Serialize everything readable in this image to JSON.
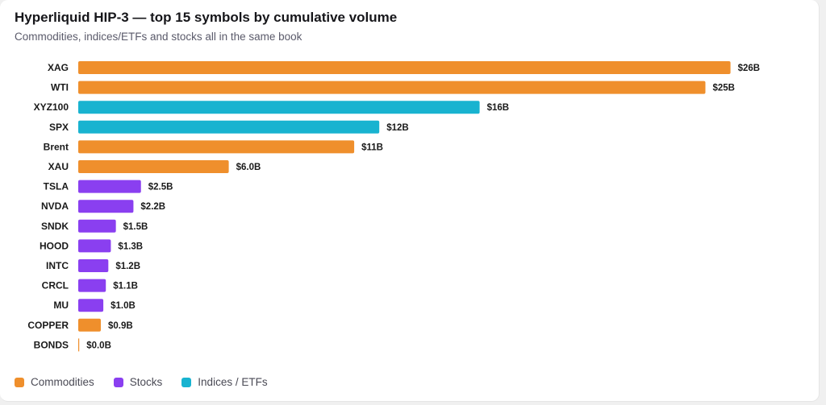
{
  "colors": {
    "Commodities": "#ef8f2c",
    "Stocks": "#8a3ff0",
    "Indices / ETFs": "#18b3d0"
  },
  "chart_data": {
    "type": "bar",
    "orientation": "horizontal",
    "title": "Hyperliquid HIP-3 — top 15 symbols by cumulative volume",
    "subtitle": "Commodities, indices/ETFs and stocks all in the same book",
    "categories": [
      "XAG",
      "WTI",
      "XYZ100",
      "SPX",
      "Brent",
      "XAU",
      "TSLA",
      "NVDA",
      "SNDK",
      "HOOD",
      "INTC",
      "CRCL",
      "MU",
      "COPPER",
      "BONDS"
    ],
    "values": [
      26,
      25,
      16,
      12,
      11,
      6.0,
      2.5,
      2.2,
      1.5,
      1.3,
      1.2,
      1.1,
      1.0,
      0.9,
      0.0
    ],
    "value_labels": [
      "$26B",
      "$25B",
      "$16B",
      "$12B",
      "$11B",
      "$6.0B",
      "$2.5B",
      "$2.2B",
      "$1.5B",
      "$1.3B",
      "$1.2B",
      "$1.1B",
      "$1.0B",
      "$0.9B",
      "$0.0B"
    ],
    "groups": [
      "Commodities",
      "Commodities",
      "Indices / ETFs",
      "Indices / ETFs",
      "Commodities",
      "Commodities",
      "Stocks",
      "Stocks",
      "Stocks",
      "Stocks",
      "Stocks",
      "Stocks",
      "Stocks",
      "Commodities",
      "Commodities"
    ],
    "legend": [
      "Commodities",
      "Stocks",
      "Indices / ETFs"
    ],
    "legend_position": "bottom-left",
    "grid": false
  }
}
